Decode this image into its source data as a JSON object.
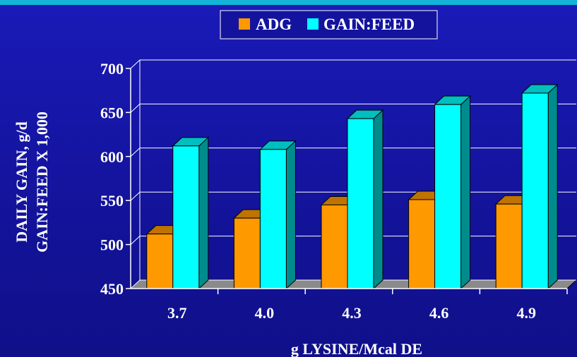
{
  "chart_data": {
    "type": "bar",
    "title": "",
    "categories": [
      "3.7",
      "4.0",
      "4.3",
      "4.6",
      "4.9"
    ],
    "series": [
      {
        "name": "ADG",
        "color": "#ff9900",
        "values": [
          512,
          530,
          545,
          551,
          546
        ]
      },
      {
        "name": "GAIN:FEED",
        "color": "#00ffff",
        "values": [
          612,
          608,
          643,
          659,
          672
        ]
      }
    ],
    "yticks": [
      450,
      500,
      550,
      600,
      650,
      700
    ],
    "ylim": [
      450,
      700
    ],
    "ylabel_lines": [
      "DAILY GAIN, g/d",
      "GAIN:FEED X 1,000"
    ],
    "xlabel": "g LYSINE/Mcal DE",
    "grid": true,
    "legend_position": "top-center",
    "style": {
      "background": "#14149f",
      "floor_color": "#8a8a8a",
      "text_color": "#ffffff"
    }
  }
}
